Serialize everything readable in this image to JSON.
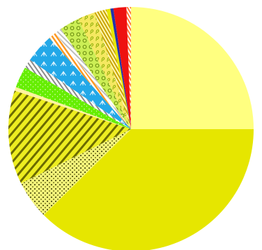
{
  "chart_data": {
    "type": "pie",
    "title": "",
    "start_angle_deg": 90,
    "direction": "clockwise",
    "legend": "none",
    "slices": [
      {
        "value": 25.0,
        "color": "#ffff80",
        "pattern": "solid"
      },
      {
        "value": 37.6,
        "color": "#e6e600",
        "pattern": "solid"
      },
      {
        "value": 5.1,
        "color": "#f2f27a",
        "pattern": "dots"
      },
      {
        "value": 12.4,
        "color": "#e6e600",
        "pattern": "diagonal-stripes"
      },
      {
        "value": 0.5,
        "color": "#fff3a0",
        "pattern": "solid"
      },
      {
        "value": 2.8,
        "color": "#66ee00",
        "pattern": "sprinkles"
      },
      {
        "value": 1.2,
        "color": "#b0b0b0",
        "pattern": "stripes"
      },
      {
        "value": 3.8,
        "color": "#22a8e8",
        "pattern": "starburst"
      },
      {
        "value": 1.0,
        "color": "#ff9922",
        "pattern": "stripes"
      },
      {
        "value": 0.9,
        "color": "#dddddd",
        "pattern": "stripes"
      },
      {
        "value": 2.6,
        "color": "#cbee55",
        "pattern": "circles"
      },
      {
        "value": 2.3,
        "color": "#f5e860",
        "pattern": "loops"
      },
      {
        "value": 1.6,
        "color": "#e6c800",
        "pattern": "stripes"
      },
      {
        "value": 0.5,
        "color": "#e6e600",
        "pattern": "solid"
      },
      {
        "value": 0.4,
        "color": "#2233aa",
        "pattern": "solid"
      },
      {
        "value": 1.7,
        "color": "#ee1111",
        "pattern": "solid"
      },
      {
        "value": 0.6,
        "color": "#ff8844",
        "pattern": "stripes"
      }
    ]
  }
}
